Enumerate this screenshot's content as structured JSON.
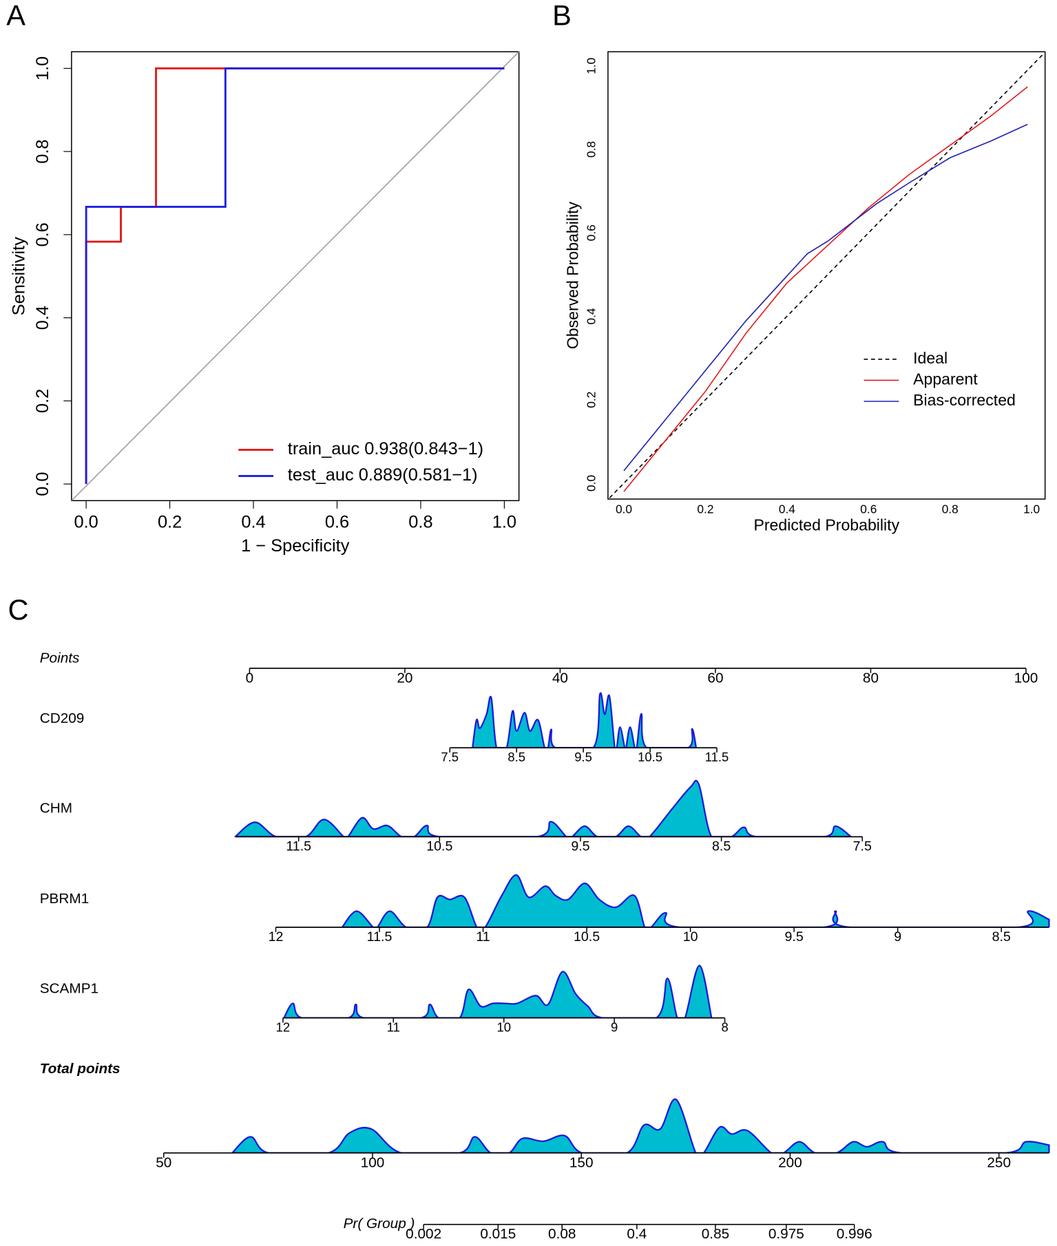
{
  "chart_data": [
    {
      "type": "line",
      "panel": "A",
      "xlabel": "1 − Specificity",
      "ylabel": "Sensitivity",
      "xlim": [
        -0.035,
        1.035
      ],
      "ylim": [
        -0.04,
        1.04
      ],
      "xticks": [
        {
          "value": 0,
          "label": "0.0"
        },
        0.2,
        0.4,
        0.6,
        0.8,
        {
          "value": 1,
          "label": "1.0"
        }
      ],
      "yticks": [
        {
          "value": 0,
          "label": "0.0"
        },
        0.2,
        0.4,
        0.6,
        0.8,
        {
          "value": 1,
          "label": "1.0"
        }
      ],
      "reference_line": true,
      "legend": "bottom-right",
      "series": [
        {
          "name": "train_auc 0.938(0.843−1)",
          "color": "#e31a1c",
          "x": [
            0,
            0,
            0.083,
            0.083,
            0.167,
            0.167,
            1
          ],
          "values": [
            0,
            0.583,
            0.583,
            0.667,
            0.667,
            1,
            1
          ]
        },
        {
          "name": "test_auc 0.889(0.581−1)",
          "color": "#1f1fe0",
          "x": [
            0,
            0,
            0.333,
            0.333,
            1
          ],
          "values": [
            0,
            0.667,
            0.667,
            1,
            1
          ]
        }
      ]
    },
    {
      "type": "line",
      "panel": "B",
      "xlabel": "Predicted Probability",
      "ylabel": "Observed Probability",
      "xlim": [
        -0.039,
        1.033
      ],
      "ylim": [
        -0.038,
        1.034
      ],
      "xticks": [
        {
          "value": 0,
          "label": "0.0"
        },
        0.2,
        0.4,
        0.6,
        0.8,
        {
          "value": 1,
          "label": "1.0"
        }
      ],
      "yticks": [
        {
          "value": 0,
          "label": "0.0"
        },
        0.2,
        0.4,
        0.6,
        0.8,
        {
          "value": 1,
          "label": "1.0"
        }
      ],
      "legend": "center-right",
      "series": [
        {
          "name": "Ideal",
          "color": "#000000",
          "dash": true,
          "x": [
            -0.035,
            1.03
          ],
          "values": [
            -0.035,
            1.03
          ]
        },
        {
          "name": "Apparent",
          "color": "#e31a1c",
          "x": [
            0,
            0.1,
            0.2,
            0.3,
            0.4,
            0.5,
            0.6,
            0.7,
            0.8,
            0.9,
            0.99
          ],
          "values": [
            -0.02,
            0.1,
            0.22,
            0.36,
            0.48,
            0.57,
            0.66,
            0.74,
            0.81,
            0.88,
            0.95
          ]
        },
        {
          "name": "Bias-corrected",
          "color": "#1f1fb4",
          "x": [
            0,
            0.1,
            0.2,
            0.3,
            0.45,
            0.5,
            0.62,
            0.7,
            0.8,
            0.9,
            0.99
          ],
          "values": [
            0.03,
            0.15,
            0.27,
            0.39,
            0.55,
            0.58,
            0.67,
            0.72,
            0.78,
            0.82,
            0.86
          ]
        }
      ]
    },
    {
      "type": "nomogram",
      "panel": "C",
      "fill_color": "#00bcd0",
      "line_color": "#1a1adb",
      "rows": [
        {
          "name": "Points",
          "xlim": [
            0,
            100
          ],
          "ticks": [
            0,
            20,
            40,
            60,
            80,
            100
          ]
        },
        {
          "name": "CD209",
          "xlim": [
            7.5,
            11.5
          ],
          "ticks": [
            7.5,
            8.5,
            9.5,
            10.5,
            11.5
          ],
          "density": {
            "x": [
              7.84,
              7.9,
              7.95,
              8.05,
              8.12,
              8.2,
              8.35,
              8.44,
              8.5,
              8.62,
              8.7,
              8.82,
              8.92,
              8.97,
              9.02,
              9.08,
              9.65,
              9.75,
              9.82,
              9.89,
              9.97,
              10.0,
              10.05,
              10.12,
              10.14,
              10.2,
              10.27,
              10.3,
              10.37,
              10.45,
              11.07,
              11.13,
              11.19
            ],
            "y": [
              0,
              0.5,
              0.35,
              0.6,
              0.9,
              0,
              0,
              0.66,
              0.3,
              0.63,
              0.3,
              0.5,
              0,
              0,
              0.33,
              0,
              0,
              0.97,
              0.6,
              0.93,
              0,
              0,
              0.37,
              0,
              0,
              0.37,
              0,
              0,
              0.61,
              0,
              0,
              0.34,
              0
            ]
          }
        },
        {
          "name": "CHM",
          "xlim": [
            11.95,
            7.5
          ],
          "ticks": [
            11.5,
            10.5,
            9.5,
            8.5,
            7.5
          ],
          "density": {
            "x": [
              11.95,
              11.81,
              11.66,
              11.45,
              11.32,
              11.18,
              11.15,
              11.05,
              10.97,
              10.87,
              10.77,
              10.68,
              10.59,
              10.5,
              9.81,
              9.71,
              9.6,
              9.56,
              9.47,
              9.38,
              9.25,
              9.16,
              9.07,
              9.01,
              8.85,
              8.72,
              8.66,
              8.57,
              8.43,
              8.34,
              8.25,
              7.77,
              7.69,
              7.58
            ],
            "y": [
              0,
              0.26,
              0,
              0,
              0.31,
              0,
              0,
              0.34,
              0.14,
              0.2,
              0,
              0,
              0.2,
              0,
              0,
              0.27,
              0,
              0,
              0.19,
              0,
              0,
              0.19,
              0,
              0,
              0.5,
              0.89,
              0.94,
              0,
              0,
              0.17,
              0,
              0,
              0.19,
              0
            ]
          }
        },
        {
          "name": "PBRM1",
          "xlim": [
            12,
            8.27
          ],
          "ticks": [
            12,
            11.5,
            11,
            10.5,
            10,
            9.5,
            9,
            8.5
          ],
          "density": {
            "x": [
              11.68,
              11.61,
              11.53,
              11.51,
              11.45,
              11.37,
              11.27,
              11.22,
              11.16,
              11.09,
              11.03,
              10.99,
              10.91,
              10.84,
              10.78,
              10.7,
              10.65,
              10.59,
              10.51,
              10.44,
              10.36,
              10.27,
              10.22,
              10.19,
              10.12,
              10.05,
              9.36,
              9.3,
              9.23,
              8.42,
              8.37,
              8.27
            ],
            "y": [
              0,
              0.29,
              0,
              0,
              0.29,
              0,
              0,
              0.54,
              0.5,
              0.54,
              0,
              0,
              0.57,
              0.94,
              0.54,
              0.74,
              0.57,
              0.5,
              0.79,
              0.5,
              0.36,
              0.57,
              0,
              0,
              0.26,
              0,
              0,
              0.29,
              0,
              0,
              0.29,
              0.14
            ]
          }
        },
        {
          "name": "SCAMP1",
          "xlim": [
            12,
            8
          ],
          "ticks": [
            12,
            11,
            10,
            9,
            8
          ],
          "density": {
            "x": [
              11.99,
              11.91,
              11.83,
              11.41,
              11.34,
              11.27,
              10.75,
              10.67,
              10.59,
              10.4,
              10.32,
              10.21,
              10.1,
              9.99,
              9.88,
              9.71,
              9.6,
              9.47,
              9.35,
              9.24,
              9.11,
              8.62,
              8.52,
              8.43,
              8.36,
              8.23,
              8.12
            ],
            "y": [
              0,
              0.26,
              0,
              0,
              0.24,
              0,
              0,
              0.24,
              0,
              0,
              0.51,
              0.21,
              0.26,
              0.26,
              0.26,
              0.4,
              0.24,
              0.83,
              0.43,
              0.21,
              0,
              0,
              0.71,
              0,
              0,
              0.94,
              0
            ]
          }
        },
        {
          "name": "Total points",
          "xlim": [
            50,
            262
          ],
          "ticks": [
            50,
            100,
            150,
            200,
            250
          ],
          "density": {
            "x": [
              66.4,
              70.8,
              75.1,
              89.4,
              94.5,
              99.7,
              106.9,
              120.9,
              124.5,
              128.3,
              132.7,
              135.9,
              140.9,
              146,
              150.2,
              160.9,
              165,
              168.9,
              172.7,
              177.4,
              179.3,
              183.1,
              186,
              189.8,
              195.5,
              198.4,
              202.2,
              206,
              211.1,
              215.1,
              218.4,
              222.2,
              226.6,
              251.7,
              256.5,
              262
            ],
            "y": [
              0,
              0.29,
              0,
              0,
              0.36,
              0.43,
              0,
              0,
              0.29,
              0,
              0,
              0.26,
              0.21,
              0.31,
              0,
              0,
              0.5,
              0.43,
              0.96,
              0,
              0,
              0.46,
              0.34,
              0.4,
              0,
              0,
              0.2,
              0,
              0,
              0.2,
              0.11,
              0.2,
              0,
              0,
              0.2,
              0.14
            ]
          }
        },
        {
          "name": "Pr( Group )",
          "scale": "logit",
          "xlim": [
            0.002,
            0.996
          ],
          "ticks": [
            0.002,
            0.015,
            0.08,
            0.4,
            0.85,
            0.975,
            0.996
          ]
        }
      ]
    }
  ]
}
